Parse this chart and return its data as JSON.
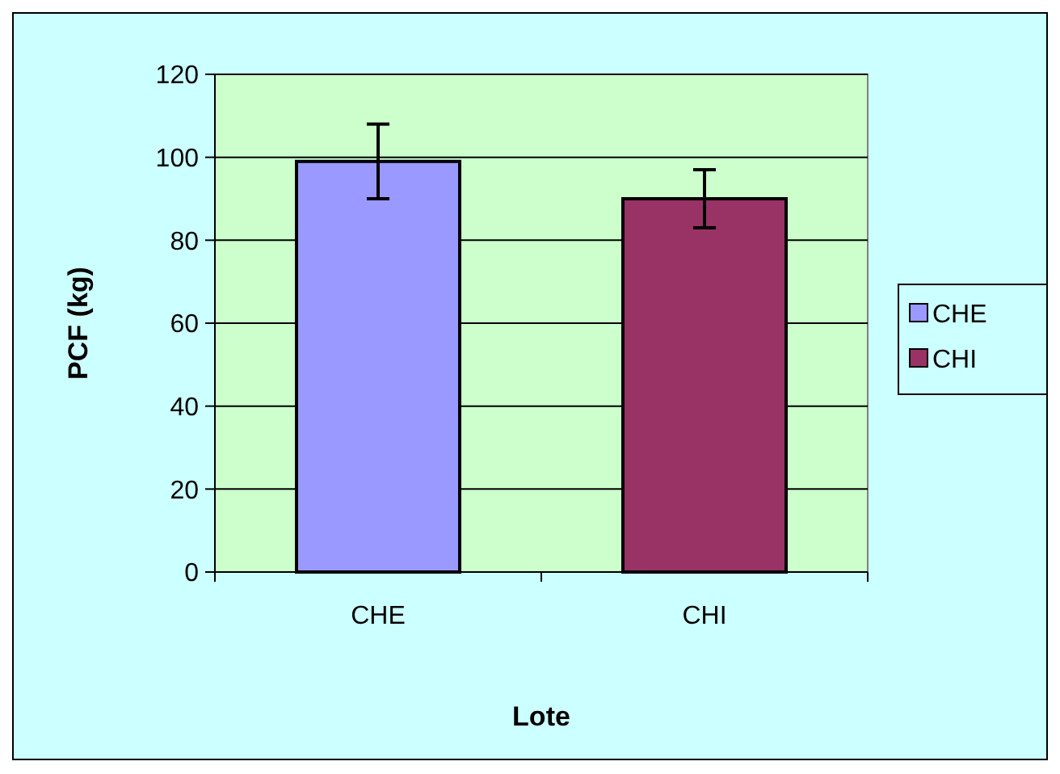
{
  "chart_data": {
    "type": "bar",
    "xlabel": "Lote",
    "ylabel": "PCF (kg)",
    "categories": [
      "CHE",
      "CHI"
    ],
    "series": [
      {
        "name": "CHE",
        "color": "#9999ff",
        "values": [
          99,
          null
        ],
        "errors": [
          9,
          null
        ]
      },
      {
        "name": "CHI",
        "color": "#993366",
        "values": [
          null,
          90
        ],
        "errors": [
          null,
          7
        ]
      }
    ],
    "ylim": [
      0,
      120
    ],
    "yticks": [
      0,
      20,
      40,
      60,
      80,
      100,
      120
    ],
    "grid": "y",
    "legend": "right"
  }
}
